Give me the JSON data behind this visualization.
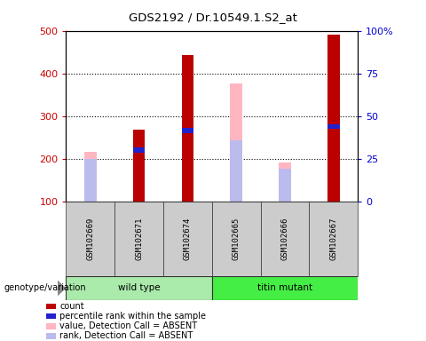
{
  "title": "GDS2192 / Dr.10549.1.S2_at",
  "samples": [
    "GSM102669",
    "GSM102671",
    "GSM102674",
    "GSM102665",
    "GSM102666",
    "GSM102667"
  ],
  "ylim": [
    100,
    500
  ],
  "y2lim": [
    0,
    100
  ],
  "yticks": [
    100,
    200,
    300,
    400,
    500
  ],
  "y2ticks": [
    0,
    25,
    50,
    75,
    100
  ],
  "ylabel_color": "#CC0000",
  "y2label_color": "#0000CC",
  "count_values": [
    null,
    267,
    443,
    null,
    null,
    490
  ],
  "rank_values": [
    null,
    220,
    265,
    null,
    null,
    275
  ],
  "absent_value_values": [
    215,
    null,
    null,
    377,
    190,
    null
  ],
  "absent_rank_values": [
    200,
    null,
    null,
    243,
    177,
    null
  ],
  "count_color": "#BB0000",
  "rank_color": "#2222CC",
  "absent_value_color": "#FFB6C1",
  "absent_rank_color": "#BBBBEE",
  "group_label_bg_wt": "#AAEAAA",
  "group_label_bg_tm": "#44EE44",
  "genotype_label": "genotype/variation",
  "legend_items": [
    {
      "color": "#BB0000",
      "label": "count"
    },
    {
      "color": "#2222CC",
      "label": "percentile rank within the sample"
    },
    {
      "color": "#FFB6C1",
      "label": "value, Detection Call = ABSENT"
    },
    {
      "color": "#BBBBEE",
      "label": "rank, Detection Call = ABSENT"
    }
  ]
}
